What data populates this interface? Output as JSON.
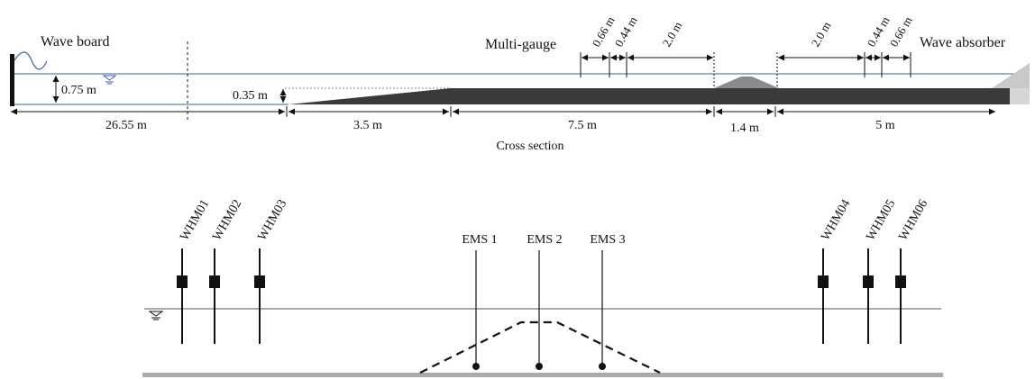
{
  "top_view": {
    "wave_board_label": "Wave board",
    "multi_gauge_label": "Multi-gauge",
    "wave_absorber_label": "Wave absorber",
    "depth_label": "0.75 m",
    "step_height_label": "0.35 m",
    "caption": "Cross section",
    "segments": [
      "26.55 m",
      "3.5 m",
      "7.5 m",
      "1.4 m",
      "5 m"
    ],
    "gauge_spacing_left": [
      "0.66 m",
      "0.44 m",
      "2.0 m"
    ],
    "gauge_spacing_right": [
      "2.0 m",
      "0.44 m",
      "0.66 m"
    ]
  },
  "bottom_view": {
    "wave_gauges_left": [
      "WHM01",
      "WHM02",
      "WHM03"
    ],
    "wave_gauges_right": [
      "WHM04",
      "WHM05",
      "WHM06"
    ],
    "velocity_meters": [
      "EMS 1",
      "EMS 2",
      "EMS 3"
    ]
  },
  "colors": {
    "water_line": "#3f5fa8",
    "floor": "#3a3a3a",
    "breakwater": "#8a8a8a",
    "absorber": "#c9c9c9",
    "bottom_bed": "#aaaaaa"
  }
}
